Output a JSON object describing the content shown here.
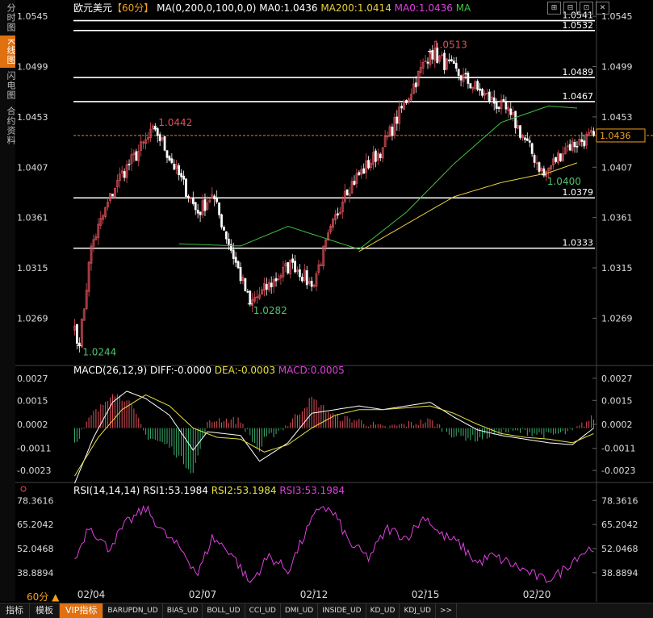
{
  "sidebar": [
    {
      "label": "分时图",
      "active": false
    },
    {
      "label": "K线图",
      "active": true
    },
    {
      "label": "闪电图",
      "active": false
    },
    {
      "label": "合约资料",
      "active": false
    }
  ],
  "header": {
    "symbol": "欧元美元",
    "period": "【60分】",
    "ma_formula": "MA(0,200,0,100,0,0)",
    "ma0_text": "MA0:1.0436",
    "ma200_text": "MA200:1.0414",
    "ma0b_text": "MA0:1.0436",
    "ma_text": "MA"
  },
  "toolbar": [
    "⊞",
    "⊟",
    "⊡",
    "✕"
  ],
  "macd_header": {
    "name": "MACD(26,12,9)",
    "diff": "DIFF:-0.0000",
    "dea": "DEA:-0.0003",
    "macd": "MACD:0.0005"
  },
  "rsi_header": {
    "name": "RSI(14,14,14)",
    "rsi1": "RSI1:53.1984",
    "rsi2": "RSI2:53.1984",
    "rsi3": "RSI3:53.1984"
  },
  "period_label": "60分 ▲",
  "bottom_tabs": [
    {
      "label": "指标",
      "active": false,
      "small": false
    },
    {
      "label": "模板",
      "active": false,
      "small": false
    },
    {
      "label": "VIP指标",
      "active": true,
      "small": false
    },
    {
      "label": "BARUPDN_UD",
      "active": false,
      "small": true
    },
    {
      "label": "BIAS_UD",
      "active": false,
      "small": true
    },
    {
      "label": "BOLL_UD",
      "active": false,
      "small": true
    },
    {
      "label": "CCI_UD",
      "active": false,
      "small": true
    },
    {
      "label": "DMI_UD",
      "active": false,
      "small": true
    },
    {
      "label": "INSIDE_UD",
      "active": false,
      "small": true
    },
    {
      "label": "KD_UD",
      "active": false,
      "small": true
    },
    {
      "label": "KDJ_UD",
      "active": false,
      "small": true
    },
    {
      "label": ">>",
      "active": false,
      "small": true
    }
  ],
  "colors": {
    "up": "#e0505a",
    "down": "#ffffff",
    "ma200": "#e8d040",
    "ma100": "#40c040",
    "diff": "#ffffff",
    "dea": "#e8e040",
    "rsi": "#e040e0",
    "hist_up": "#e0505a",
    "hist_down": "#3ab070",
    "last_price": "#f0a020"
  },
  "chart_data": [
    {
      "type": "candlestick",
      "title": "欧元美元 60分",
      "y_ticks": [
        "1.0545",
        "1.0499",
        "1.0453",
        "1.0407",
        "1.0361",
        "1.0315",
        "1.0269"
      ],
      "ylim": [
        1.0228,
        1.0551
      ],
      "x_ticks": [
        "02/04",
        "02/07",
        "02/12",
        "02/15",
        "02/20"
      ],
      "x_tick_index": [
        7,
        54,
        101,
        148,
        195
      ],
      "n_bars": 220,
      "anchors": {
        "index": [
          0,
          2,
          7,
          18,
          34,
          52,
          58,
          74,
          92,
          100,
          114,
          130,
          150,
          170,
          184,
          198,
          207,
          219
        ],
        "close": [
          1.0262,
          1.0244,
          1.0335,
          1.0395,
          1.0442,
          1.0365,
          1.0382,
          1.0282,
          1.032,
          1.0298,
          1.0385,
          1.0425,
          1.0513,
          1.0478,
          1.0455,
          1.04,
          1.0425,
          1.0436
        ]
      },
      "labels": {
        "high_label": "1.0513",
        "high_index": 150,
        "low_label": "1.0244",
        "low_index": 2,
        "label_1": "1.0442",
        "label_1_index": 34,
        "label_2": "1.0282",
        "label_2_index": 74,
        "label_3": "1.0400",
        "label_3_index": 198
      },
      "levels": [
        {
          "value": 1.0541,
          "label": "1.0541"
        },
        {
          "value": 1.0532,
          "label": "1.0532"
        },
        {
          "value": 1.0489,
          "label": "1.0489"
        },
        {
          "value": 1.0467,
          "label": "1.0467"
        },
        {
          "value": 1.0379,
          "label": "1.0379"
        },
        {
          "value": 1.0333,
          "label": "1.0333"
        }
      ],
      "last_price": 1.0436,
      "last_price_label": "1.0436",
      "ma100": {
        "index": [
          44,
          70,
          90,
          120,
          140,
          160,
          180,
          200,
          212
        ],
        "value": [
          1.0337,
          1.0335,
          1.0353,
          1.0332,
          1.0366,
          1.041,
          1.0448,
          1.0463,
          1.0461
        ]
      },
      "ma200": {
        "index": [
          120,
          140,
          160,
          180,
          200,
          212
        ],
        "value": [
          1.033,
          1.0355,
          1.038,
          1.0393,
          1.0402,
          1.0411
        ]
      }
    },
    {
      "type": "macd",
      "title": "MACD(26,12,9)",
      "y_ticks": [
        "0.0027",
        "0.0015",
        "0.0002",
        "-0.0011",
        "-0.0023"
      ],
      "ylim": [
        -0.0026,
        0.003
      ],
      "diff": {
        "index": [
          0,
          8,
          16,
          22,
          30,
          40,
          50,
          56,
          70,
          78,
          90,
          100,
          110,
          120,
          130,
          140,
          150,
          160,
          170,
          180,
          190,
          200,
          210,
          219
        ],
        "value": [
          -0.003,
          -0.0005,
          0.0014,
          0.002,
          0.0016,
          0.0007,
          -0.0012,
          -0.0002,
          -0.0004,
          -0.0018,
          -0.0008,
          0.0008,
          0.001,
          0.0012,
          0.001,
          0.0012,
          0.0014,
          0.0006,
          -0.0001,
          -0.0004,
          -0.0006,
          -0.0008,
          -0.0009,
          -0.0
        ]
      },
      "dea": {
        "index": [
          0,
          10,
          20,
          30,
          40,
          50,
          60,
          70,
          80,
          90,
          100,
          110,
          120,
          130,
          140,
          150,
          160,
          170,
          180,
          190,
          200,
          210,
          219
        ],
        "value": [
          -0.0026,
          -0.0005,
          0.001,
          0.0018,
          0.0012,
          0.0,
          -0.0005,
          -0.0006,
          -0.0013,
          -0.0009,
          -0.0,
          0.0007,
          0.001,
          0.001,
          0.0011,
          0.0012,
          0.0008,
          0.0002,
          -0.0003,
          -0.0005,
          -0.0006,
          -0.0008,
          -0.0003
        ]
      }
    },
    {
      "type": "line",
      "title": "RSI(14,14,14)",
      "y_ticks": [
        "78.3616",
        "65.2042",
        "52.0468",
        "38.8894"
      ],
      "ylim": [
        30,
        82
      ],
      "rsi": {
        "index": [
          0,
          6,
          14,
          22,
          30,
          38,
          46,
          52,
          58,
          66,
          74,
          82,
          90,
          98,
          104,
          110,
          116,
          124,
          132,
          140,
          148,
          154,
          162,
          170,
          176,
          182,
          190,
          198,
          204,
          212,
          219
        ],
        "value": [
          45,
          65,
          52,
          66,
          74,
          60,
          50,
          38,
          58,
          50,
          33,
          48,
          40,
          62,
          76,
          70,
          55,
          47,
          63,
          58,
          70,
          60,
          55,
          44,
          48,
          45,
          40,
          35,
          38,
          48,
          53.2
        ]
      }
    }
  ]
}
